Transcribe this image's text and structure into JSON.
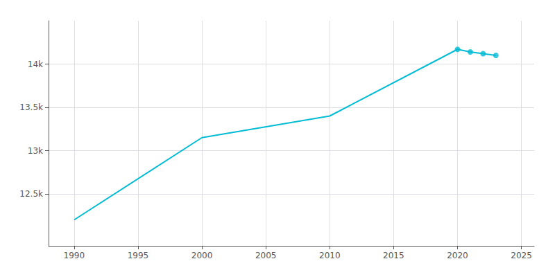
{
  "chart_data": {
    "type": "line",
    "x": [
      1990,
      2000,
      2010,
      2020,
      2021,
      2022,
      2023
    ],
    "series": [
      {
        "type": "line",
        "color": "#00bcd4",
        "marker": "none",
        "line_style": "solid",
        "values": [
          12200,
          13150,
          13400,
          14170,
          14140,
          14120,
          14100
        ]
      },
      {
        "type": "scatter",
        "color": "#00bcd4",
        "marker": "circle",
        "values": [
          null,
          null,
          null,
          14170,
          14140,
          14120,
          14100
        ]
      }
    ],
    "xlim": [
      1988,
      2026
    ],
    "ylim": [
      11900,
      14500
    ],
    "xticks": [
      1990,
      1995,
      2000,
      2005,
      2010,
      2015,
      2020,
      2025
    ],
    "yticks": [
      {
        "value": 12500,
        "label": "12.5k"
      },
      {
        "value": 13000,
        "label": "13k"
      },
      {
        "value": 13500,
        "label": "13.5k"
      },
      {
        "value": 14000,
        "label": "14k"
      }
    ],
    "grid": true
  }
}
